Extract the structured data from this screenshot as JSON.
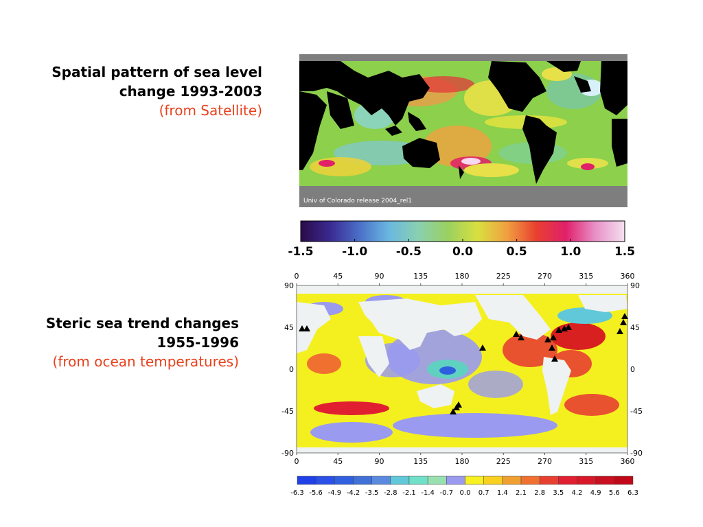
{
  "captions": {
    "satellite": {
      "title_line1": "Spatial pattern of sea level",
      "title_line2": "change 1993-2003",
      "source": "(from Satellite)"
    },
    "steric": {
      "title_line1": "Steric sea trend changes",
      "title_line2": "1955-1996",
      "source": "(from ocean temperatures)"
    }
  },
  "satellite_map": {
    "credit": "Univ of Colorado release 2004_rel1",
    "colorbar_ticks": [
      "-1.5",
      "-1.0",
      "-0.5",
      "0.0",
      "0.5",
      "1.0",
      "1.5"
    ],
    "colorbar_colors": [
      "#2a0a4a",
      "#3a2a90",
      "#4a70c8",
      "#6ab8e0",
      "#8ad0b0",
      "#9ad060",
      "#d8e040",
      "#f0a040",
      "#e84030",
      "#e0206a",
      "#e890c8",
      "#f4e0f0"
    ]
  },
  "steric_map": {
    "x_ticks": [
      "0",
      "45",
      "90",
      "135",
      "180",
      "225",
      "270",
      "315",
      "360"
    ],
    "y_ticks": [
      "90",
      "45",
      "0",
      "-45",
      "-90"
    ],
    "colorbar_labels": [
      "-6.3",
      "-5.6",
      "-4.9",
      "-4.2",
      "-3.5",
      "-2.8",
      "-2.1",
      "-1.4",
      "-0.7",
      "0.0",
      "0.7",
      "1.4",
      "2.1",
      "2.8",
      "3.5",
      "4.2",
      "4.9",
      "5.6",
      "6.3"
    ],
    "colorbar_colors": [
      "#2040e8",
      "#2a50e8",
      "#3060e0",
      "#4070d8",
      "#5a8ae0",
      "#60c8d8",
      "#70e0c8",
      "#98e0b0",
      "#9a9af0",
      "#f8f020",
      "#f8d020",
      "#f0a030",
      "#f07030",
      "#e84030",
      "#e02030",
      "#d81828",
      "#c81020",
      "#c00818"
    ]
  }
}
